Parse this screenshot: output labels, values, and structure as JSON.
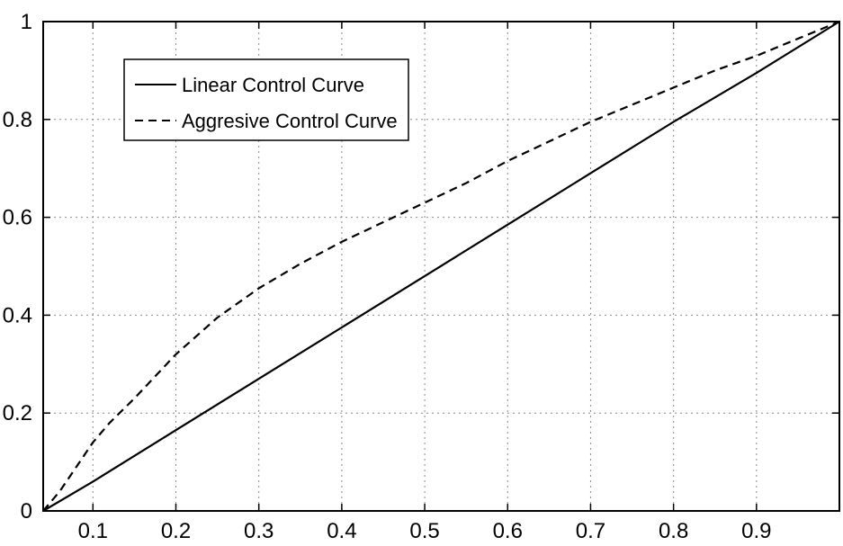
{
  "chart_data": {
    "type": "line",
    "title": "",
    "xlabel": "",
    "ylabel": "",
    "xlim": [
      0.04,
      1.0
    ],
    "ylim": [
      0,
      1
    ],
    "grid": true,
    "grid_style": "dotted",
    "legend_position": "top-left",
    "x_ticks": [
      0.1,
      0.2,
      0.3,
      0.4,
      0.5,
      0.6,
      0.7,
      0.8,
      0.9
    ],
    "x_tick_labels": [
      "0.1",
      "0.2",
      "0.3",
      "0.4",
      "0.5",
      "0.6",
      "0.7",
      "0.8",
      "0.9"
    ],
    "y_ticks": [
      0,
      0.2,
      0.4,
      0.6,
      0.8,
      1
    ],
    "y_tick_labels": [
      "0",
      "0.2",
      "0.4",
      "0.6",
      "0.8",
      "1"
    ],
    "series": [
      {
        "name": "Linear Control Curve",
        "style": "solid",
        "color": "#000000",
        "x": [
          0.04,
          0.1,
          0.2,
          0.3,
          0.4,
          0.5,
          0.6,
          0.7,
          0.8,
          0.9,
          1.0
        ],
        "y": [
          0.0,
          0.06,
          0.165,
          0.27,
          0.375,
          0.48,
          0.585,
          0.69,
          0.795,
          0.895,
          1.0
        ]
      },
      {
        "name": "Aggresive Control Curve",
        "style": "dashed",
        "color": "#000000",
        "x": [
          0.04,
          0.06,
          0.08,
          0.1,
          0.12,
          0.15,
          0.2,
          0.25,
          0.3,
          0.35,
          0.4,
          0.45,
          0.5,
          0.55,
          0.6,
          0.65,
          0.7,
          0.75,
          0.8,
          0.85,
          0.9,
          0.95,
          1.0
        ],
        "y": [
          0.0,
          0.04,
          0.09,
          0.14,
          0.18,
          0.23,
          0.32,
          0.395,
          0.455,
          0.505,
          0.55,
          0.59,
          0.63,
          0.67,
          0.715,
          0.755,
          0.795,
          0.83,
          0.865,
          0.9,
          0.93,
          0.965,
          1.0
        ]
      }
    ]
  }
}
